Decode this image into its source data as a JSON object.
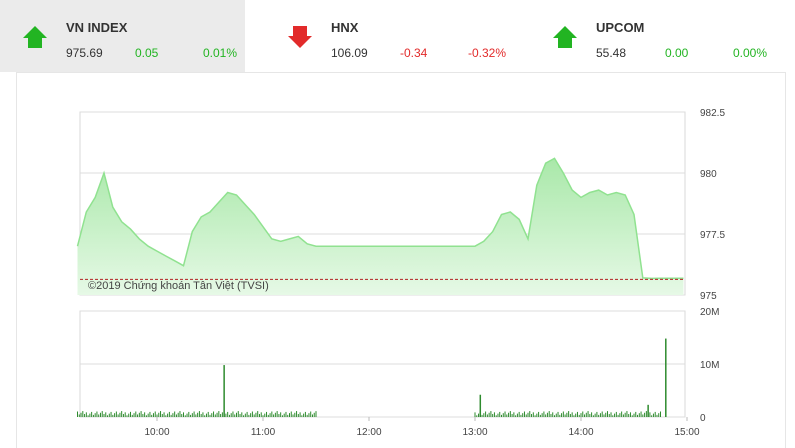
{
  "tabs": [
    {
      "name": "VN INDEX",
      "value": "975.69",
      "change": "0.05",
      "percent": "0.01%",
      "direction": "up",
      "active": true
    },
    {
      "name": "HNX",
      "value": "106.09",
      "change": "-0.34",
      "percent": "-0.32%",
      "direction": "down",
      "active": false
    },
    {
      "name": "UPCOM",
      "value": "55.48",
      "change": "0.00",
      "percent": "0.00%",
      "direction": "up",
      "active": false
    }
  ],
  "colors": {
    "up": "#22b422",
    "down": "#e22a2a",
    "area_fill": "#c8f0c8",
    "area_line": "#90e290",
    "volume": "#2e8b2e",
    "reference_line": "#b22222"
  },
  "watermark": "©2019 Chứng khoán Tân Việt (TVSI)",
  "chart_data": [
    {
      "type": "area",
      "x_ticks": [
        "10:00",
        "11:00",
        "12:00",
        "13:00",
        "14:00",
        "15:00"
      ],
      "y_ticks": [
        "982.5",
        "980",
        "977.5",
        "975"
      ],
      "ylim": [
        975,
        982.5
      ],
      "reference_value": 975.64,
      "x": [
        "09:15",
        "09:20",
        "09:25",
        "09:30",
        "09:35",
        "09:40",
        "09:45",
        "09:50",
        "09:55",
        "10:00",
        "10:05",
        "10:10",
        "10:15",
        "10:20",
        "10:25",
        "10:30",
        "10:35",
        "10:40",
        "10:45",
        "10:50",
        "10:55",
        "11:00",
        "11:05",
        "11:10",
        "11:15",
        "11:20",
        "11:25",
        "11:30",
        "13:00",
        "13:05",
        "13:10",
        "13:15",
        "13:20",
        "13:25",
        "13:30",
        "13:35",
        "13:40",
        "13:45",
        "13:50",
        "13:55",
        "14:00",
        "14:05",
        "14:10",
        "14:15",
        "14:20",
        "14:25",
        "14:30",
        "14:35",
        "14:40",
        "14:45"
      ],
      "values": [
        977.0,
        978.4,
        979.0,
        980.0,
        978.6,
        978.0,
        977.7,
        977.3,
        977.0,
        976.8,
        976.6,
        976.4,
        976.2,
        977.6,
        978.2,
        978.4,
        978.8,
        979.2,
        979.1,
        978.7,
        978.3,
        977.8,
        977.3,
        977.2,
        977.3,
        977.4,
        977.1,
        977.0,
        977.0,
        977.2,
        977.6,
        978.3,
        978.4,
        978.1,
        977.3,
        979.5,
        980.4,
        980.6,
        980.0,
        979.3,
        979.0,
        979.2,
        979.3,
        979.1,
        979.2,
        979.1,
        978.3,
        975.7,
        975.68,
        975.69
      ]
    },
    {
      "type": "bar",
      "y_ticks": [
        "20M",
        "10M",
        "0"
      ],
      "ylim": [
        0,
        20
      ],
      "unit": "M",
      "spikes": [
        {
          "time": "10:38",
          "value": 9.8
        },
        {
          "time": "13:03",
          "value": 4.2
        },
        {
          "time": "14:38",
          "value": 2.3
        },
        {
          "time": "14:48",
          "value": 14.8
        }
      ],
      "baseline_volume": 0.8
    }
  ]
}
